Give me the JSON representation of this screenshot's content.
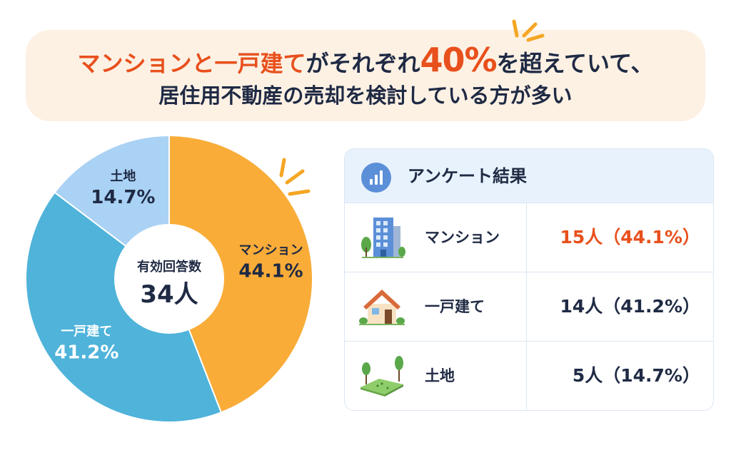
{
  "headline": {
    "line1_part1": "マンションと",
    "line1_part2": "一戸建て",
    "line1_part3": "がそれぞれ",
    "line1_part4": "40%",
    "line1_part5": "を超えていて、",
    "line2": "居住用不動産の売却を検討している方が多い"
  },
  "colors": {
    "accent": "#e8501c",
    "mansion": "#f9ac38",
    "house": "#4fb3da",
    "land": "#aad2f4",
    "text": "#1f2a44"
  },
  "chart_data": {
    "type": "pie",
    "donut": true,
    "center_label": "有効回答数",
    "center_value": "34人",
    "slices": [
      {
        "label": "マンション",
        "value": 44.1,
        "display": "44.1%",
        "color": "#f9ac38"
      },
      {
        "label": "一戸建て",
        "value": 41.2,
        "display": "41.2%",
        "color": "#4fb3da"
      },
      {
        "label": "土地",
        "value": 14.7,
        "display": "14.7%",
        "color": "#aad2f4"
      }
    ]
  },
  "table": {
    "title": "アンケート結果",
    "title_icon": "bar-chart-icon",
    "rows": [
      {
        "icon": "apartment-building-icon",
        "label": "マンション",
        "value": "15人（44.1%）",
        "highlight": true
      },
      {
        "icon": "house-icon",
        "label": "一戸建て",
        "value": "14人（41.2%）",
        "highlight": false
      },
      {
        "icon": "land-plot-icon",
        "label": "土地",
        "value": "5人（14.7%）",
        "highlight": false
      }
    ]
  }
}
